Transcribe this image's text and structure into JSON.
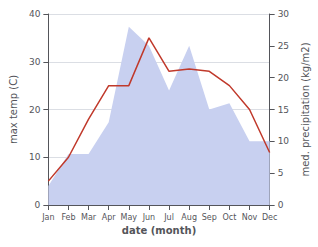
{
  "chart_data": {
    "type": "line",
    "categories": [
      "Jan",
      "Feb",
      "Mar",
      "Apr",
      "May",
      "Jun",
      "Jul",
      "Aug",
      "Sep",
      "Oct",
      "Nov",
      "Dec"
    ],
    "xlabel": "date (month)",
    "ylabel": "max temp (C)",
    "y2label": "med. precipitation (kg/m2)",
    "series": [
      {
        "type": "area",
        "axis": "y2",
        "color": "#c8d0f0",
        "values": [
          3.0,
          8.0,
          8.0,
          13.0,
          28.0,
          25.0,
          18.0,
          25.0,
          15.0,
          16.0,
          10.0,
          10.0
        ]
      },
      {
        "type": "line",
        "axis": "y",
        "color": "#c0392b",
        "values": [
          5.0,
          10.0,
          18.0,
          25.0,
          25.0,
          35.0,
          28.0,
          28.5,
          28.0,
          25.0,
          20.0,
          11.0
        ]
      }
    ],
    "ylim": [
      0,
      40
    ],
    "yticks": [
      0,
      10,
      20,
      30,
      40
    ],
    "y2lim": [
      0,
      30
    ],
    "y2ticks": [
      0,
      5,
      10,
      15,
      20,
      25,
      30
    ],
    "grid": true
  }
}
